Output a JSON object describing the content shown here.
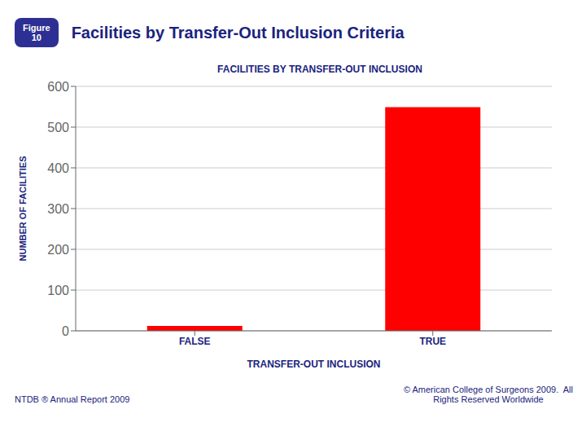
{
  "chart_data": {
    "type": "bar",
    "title": "Facilities by Transfer-Out Inclusion Criteria",
    "subtitle": "FACILITIES BY TRANSFER-OUT INCLUSION",
    "categories": [
      "FALSE",
      "TRUE"
    ],
    "values": [
      12,
      549
    ],
    "color": "#ff0000",
    "xlabel": "TRANSFER-OUT INCLUSION",
    "ylabel": "NUMBER OF FACILITIES",
    "ylim": [
      0,
      600
    ],
    "yticks": [
      0,
      100,
      200,
      300,
      400,
      500,
      600
    ],
    "grid": true,
    "annotations": [
      "Figure\n10",
      "NTDB ® Annual Report 2009",
      "© American College of Surgeons 2009.  All\nRights Reserved Worldwide"
    ]
  }
}
